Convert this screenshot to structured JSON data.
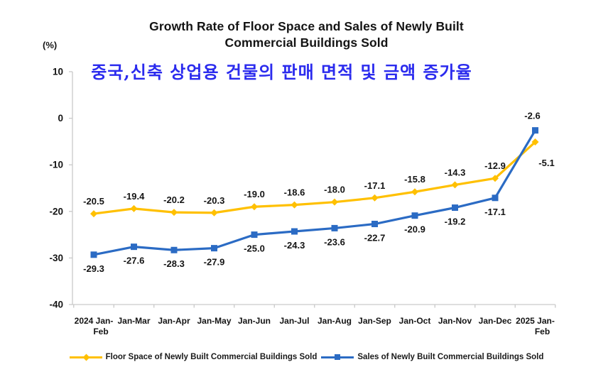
{
  "header": {
    "title_line1": "Growth Rate of Floor Space and Sales of Newly Built",
    "title_line2": "Commercial Buildings Sold",
    "subtitle_korean": "중국,신축 상업용 건물의 판매 면적 및 금액 증가율",
    "subtitle_color": "#2B2BEE",
    "unit_label": "(%)"
  },
  "chart_data": {
    "type": "line",
    "categories": [
      "2024 Jan-\nFeb",
      "Jan-Mar",
      "Jan-Apr",
      "Jan-May",
      "Jan-Jun",
      "Jan-Jul",
      "Jan-Aug",
      "Jan-Sep",
      "Jan-Oct",
      "Jan-Nov",
      "Jan-Dec",
      "2025 Jan-\nFeb"
    ],
    "series": [
      {
        "name": "Floor Space of Newly Built Commercial Buildings Sold",
        "color": "#FFC000",
        "marker": "diamond",
        "label_side": "above",
        "values": [
          -20.5,
          -19.4,
          -20.2,
          -20.3,
          -19.0,
          -18.6,
          -18.0,
          -17.1,
          -15.8,
          -14.3,
          -12.9,
          -5.1
        ]
      },
      {
        "name": "Sales of Newly Built Commercial Buildings Sold",
        "color": "#2B6BC4",
        "marker": "square",
        "label_side": "below",
        "values": [
          -29.3,
          -27.6,
          -28.3,
          -27.9,
          -25.0,
          -24.3,
          -23.6,
          -22.7,
          -20.9,
          -19.2,
          -17.1,
          -2.6
        ]
      }
    ],
    "ylim": [
      -40,
      10
    ],
    "yticks": [
      10,
      0,
      -10,
      -20,
      -30,
      -40
    ],
    "grid": false,
    "legend_position": "bottom",
    "axis_color": "#C9C9C9",
    "text_color": "#141414"
  }
}
